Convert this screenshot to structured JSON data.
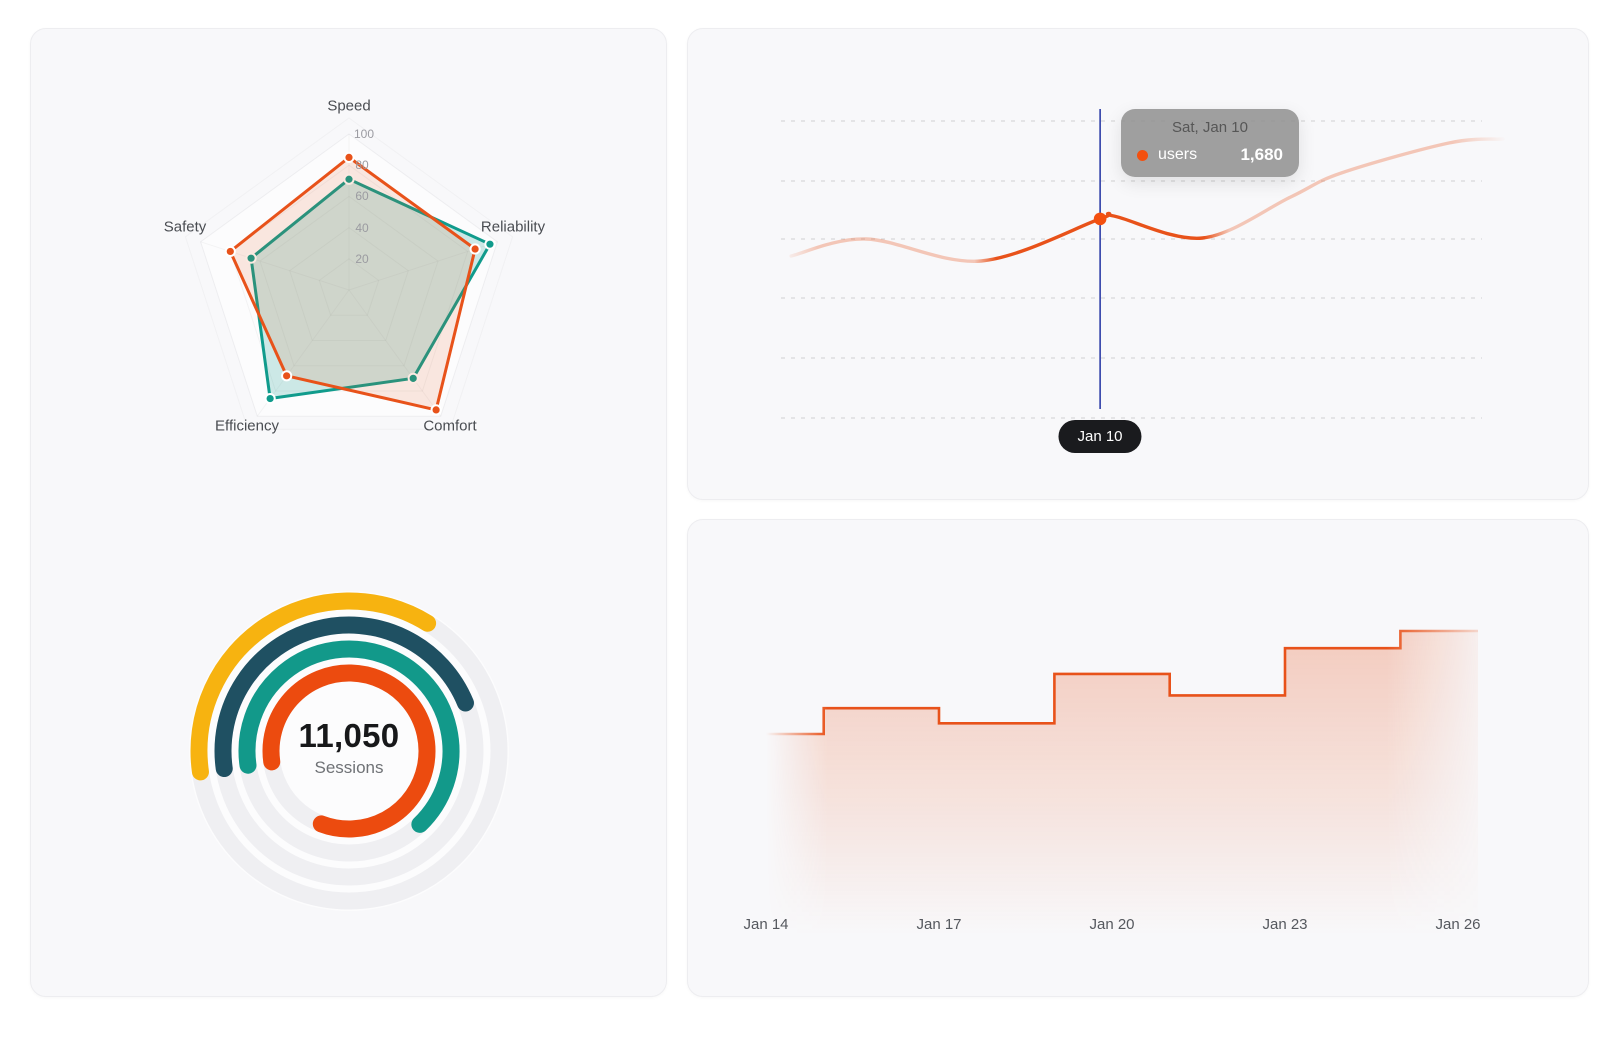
{
  "theme": {
    "page_bg": "#ffffff",
    "panel_bg": "#f8f8fa",
    "panel_border": "#ededf0",
    "orange": "#E8521A",
    "teal": "#109B8C",
    "grid_line": "rgba(0,0,0,0.13)"
  },
  "chart_data": [
    {
      "id": "radar",
      "type": "radar",
      "panel": "top-left",
      "indicators": [
        "Speed",
        "Reliability",
        "Comfort",
        "Efficiency",
        "Safety"
      ],
      "scale": {
        "min": 0,
        "max": 100,
        "tick_step": 20
      },
      "tick_labels": [
        "100",
        "80",
        "60",
        "40",
        "20"
      ],
      "grid": "pentagon rings, very faint",
      "legend": "none",
      "series": [
        {
          "name": "series-orange",
          "color": "#E8521A",
          "fill_opacity": 0.13,
          "values": [
            85,
            85,
            95,
            68,
            80
          ]
        },
        {
          "name": "series-teal",
          "color": "#109B8C",
          "fill_opacity": 0.2,
          "values": [
            71,
            95,
            70,
            86,
            66
          ]
        }
      ]
    },
    {
      "id": "users-line",
      "type": "line",
      "panel": "top-right",
      "grid": {
        "horizontal_lines": 6,
        "style": "dashed"
      },
      "x_axis": "hidden (only cursor pill shown)",
      "cursor_color": "#2F3FA7",
      "dot_color": "#F4500F",
      "bold_range": [
        0.298,
        0.586
      ],
      "series": [
        {
          "name": "users",
          "color": "#E8521A",
          "smooth": true,
          "samples": [
            {
              "f": 0.014,
              "users": 1367
            },
            {
              "f": 0.118,
              "users": 1510
            },
            {
              "f": 0.277,
              "users": 1325
            },
            {
              "f": 0.442,
              "users": 1680
            },
            {
              "f": 0.461,
              "users": 1704
            },
            {
              "f": 0.584,
              "users": 1519
            },
            {
              "f": 0.706,
              "users": 1865
            },
            {
              "f": 0.776,
              "users": 2067
            },
            {
              "f": 0.925,
              "users": 2320
            },
            {
              "f": 1.0,
              "users": 2354
            }
          ]
        }
      ],
      "highlight": {
        "f": 0.442,
        "date": "Jan 10",
        "tooltip_title": "Sat, Jan 10",
        "series": "users",
        "value": 1680,
        "value_label": "1,680"
      }
    },
    {
      "id": "sessions-gauge",
      "type": "gauge",
      "panel": "bottom-left",
      "center_value": "11,050",
      "center_label": "Sessions",
      "start_angle_deg": 188,
      "track_color": "#efeff2",
      "rings": [
        {
          "name": "ring-outer",
          "color": "#F7B310",
          "percent": 36
        },
        {
          "name": "ring-2",
          "color": "#1F5062",
          "percent": 46
        },
        {
          "name": "ring-3",
          "color": "#12998A",
          "percent": 65
        },
        {
          "name": "ring-inner",
          "color": "#EC4B0F",
          "percent": 83
        }
      ]
    },
    {
      "id": "daily-step",
      "type": "area",
      "subtype": "step-after",
      "panel": "bottom-right",
      "color": "#E8521A",
      "y_axis": "hidden",
      "note": "values estimated relative; no y axis shown in chart",
      "x_labels": [
        "Jan 14",
        "Jan 17",
        "Jan 20",
        "Jan 23",
        "Jan 26"
      ],
      "points": [
        {
          "date": "Jan 14",
          "value": 48
        },
        {
          "date": "Jan 15",
          "value": 54
        },
        {
          "date": "Jan 17",
          "value": 50.5
        },
        {
          "date": "Jan 19",
          "value": 62
        },
        {
          "date": "Jan 21",
          "value": 57
        },
        {
          "date": "Jan 23",
          "value": 68
        },
        {
          "date": "Jan 25",
          "value": 72
        }
      ]
    }
  ]
}
